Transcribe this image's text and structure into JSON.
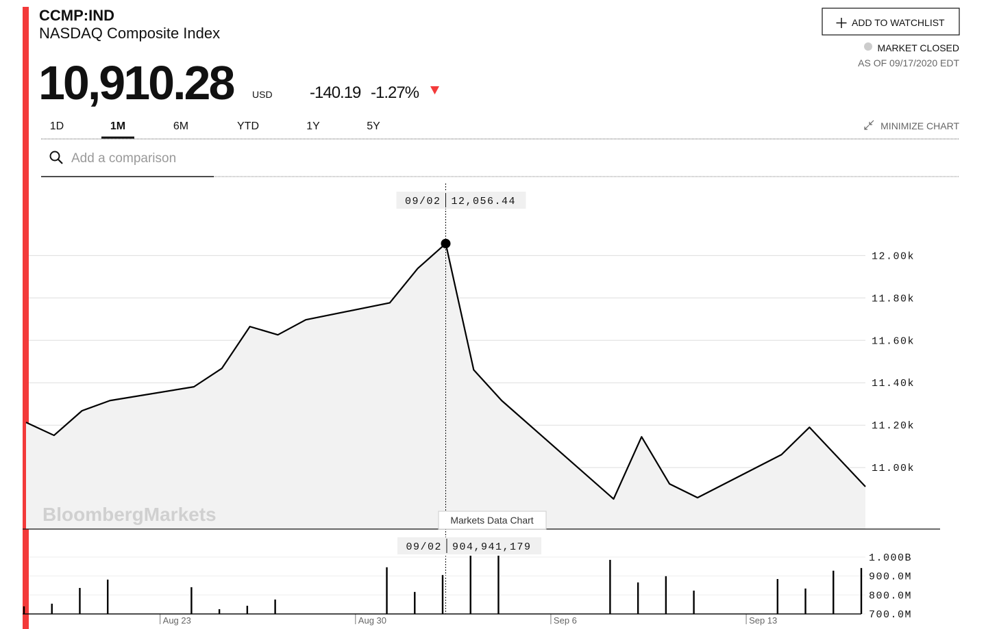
{
  "header": {
    "ticker": "CCMP:IND",
    "name": "NASDAQ Composite Index",
    "price": "10,910.28",
    "currency": "USD",
    "change": "-140.19",
    "change_percent": "-1.27%"
  },
  "actions": {
    "watchlist": "ADD TO WATCHLIST",
    "market_status": "MARKET CLOSED",
    "as_of": "AS OF 09/17/2020 EDT",
    "minimize": "MINIMIZE CHART"
  },
  "tabs": [
    "1D",
    "1M",
    "6M",
    "YTD",
    "1Y",
    "5Y"
  ],
  "active_tab": 1,
  "search_placeholder": "Add a comparison",
  "watermark": "BloombergMarkets",
  "chart_label": "Markets Data Chart",
  "chart_data": [
    {
      "type": "area",
      "color": "#000000",
      "fill": "#f2f2f2",
      "x": [
        "08/18",
        "08/19",
        "08/20",
        "08/21",
        "08/24",
        "08/25",
        "08/26",
        "08/27",
        "08/28",
        "08/31",
        "09/01",
        "09/02",
        "09/03",
        "09/04",
        "09/08",
        "09/09",
        "09/10",
        "09/11",
        "09/14",
        "09/15",
        "09/16",
        "09/17"
      ],
      "values": [
        11213,
        11152,
        11268,
        11316,
        11381,
        11468,
        11665,
        11626,
        11697,
        11777,
        11939,
        12056.44,
        11461,
        11316,
        10852,
        11145,
        10923,
        10858,
        11061,
        11190,
        11050,
        10910.28
      ],
      "xlim": [
        "08/18",
        "09/17"
      ],
      "ylim": [
        10710,
        12340
      ],
      "yticks": [
        {
          "value": 11000,
          "label": "11.00k"
        },
        {
          "value": 11200,
          "label": "11.20k"
        },
        {
          "value": 11400,
          "label": "11.40k"
        },
        {
          "value": 11600,
          "label": "11.60k"
        },
        {
          "value": 11800,
          "label": "11.80k"
        },
        {
          "value": 12000,
          "label": "12.00k"
        }
      ],
      "grid": true,
      "tooltip": {
        "x": "09/02",
        "label": "12,056.44"
      }
    },
    {
      "type": "bar",
      "color": "#000000",
      "x": [
        "08/18",
        "08/19",
        "08/20",
        "08/21",
        "08/24",
        "08/25",
        "08/26",
        "08/27",
        "08/28",
        "08/31",
        "09/01",
        "09/02",
        "09/03",
        "09/04",
        "09/08",
        "09/09",
        "09/10",
        "09/11",
        "09/14",
        "09/15",
        "09/16",
        "09/17"
      ],
      "values": [
        740000000,
        754000000,
        837000000,
        881000000,
        841000000,
        725000000,
        743000000,
        776000000,
        null,
        946000000,
        816000000,
        904941179,
        1007000000,
        1007000000,
        985000000,
        866000000,
        899000000,
        823000000,
        884000000,
        834000000,
        928000000,
        942000000
      ],
      "xlim": [
        "08/18",
        "09/17"
      ],
      "ylim": [
        700000000,
        1140000000
      ],
      "yticks": [
        {
          "value": 700000000,
          "label": "700.0M"
        },
        {
          "value": 800000000,
          "label": "800.0M"
        },
        {
          "value": 900000000,
          "label": "900.0M"
        },
        {
          "value": 1000000000,
          "label": "1.000B"
        }
      ],
      "xticks": [
        {
          "value": "08/23",
          "label": "Aug 23"
        },
        {
          "value": "08/30",
          "label": "Aug 30"
        },
        {
          "value": "09/06",
          "label": "Sep 6"
        },
        {
          "value": "09/13",
          "label": "Sep 13"
        }
      ],
      "grid": true,
      "tooltip": {
        "x": "09/02",
        "label": "904,941,179"
      }
    }
  ]
}
